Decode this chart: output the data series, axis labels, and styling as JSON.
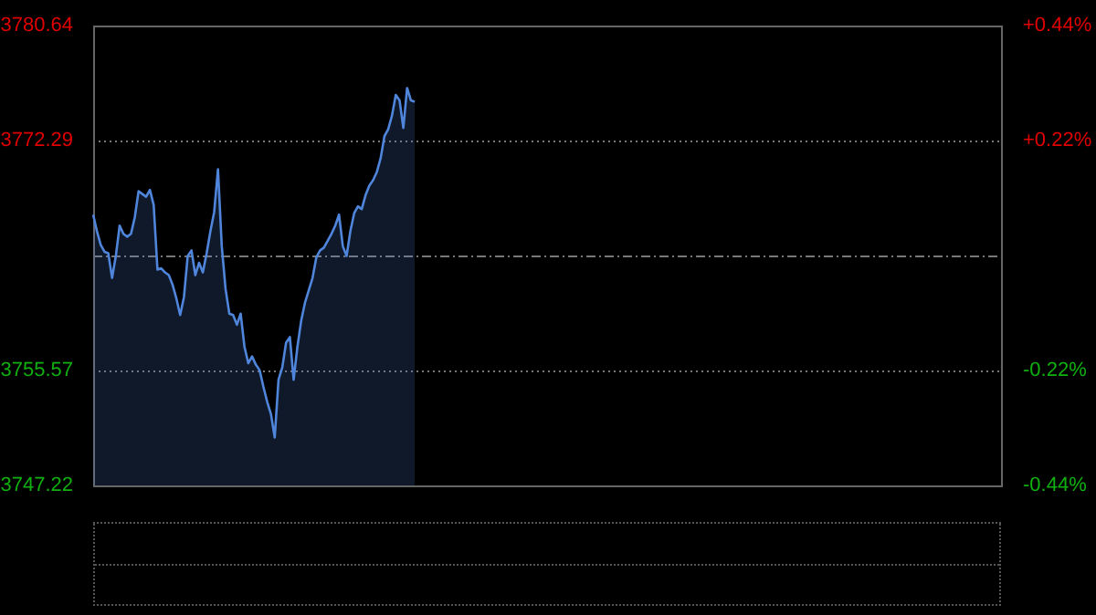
{
  "chart_data": {
    "type": "area",
    "color": "#4f86dc",
    "categories": [
      null,
      null,
      null,
      null,
      null,
      null,
      null,
      null,
      null,
      null,
      null,
      null,
      null,
      null,
      null,
      null,
      null,
      null,
      null,
      null,
      null,
      null,
      null,
      null,
      null,
      null,
      null,
      null,
      null,
      null,
      null,
      null,
      null,
      null,
      null,
      null,
      null,
      null,
      null,
      null,
      null,
      null,
      null,
      null,
      null,
      null,
      null,
      null,
      null,
      null,
      null,
      null,
      null,
      null,
      null,
      null,
      null,
      null,
      null,
      null,
      null,
      null,
      null,
      null,
      null,
      null,
      null,
      null,
      null,
      null,
      null,
      null,
      null,
      null,
      null,
      null,
      null,
      null,
      null,
      null,
      null,
      null,
      null,
      null,
      null,
      null,
      null,
      null,
      null,
      null,
      null,
      null,
      null,
      null,
      null,
      null,
      null,
      null,
      null,
      null,
      null,
      null,
      null,
      null,
      null,
      null,
      null,
      null,
      null,
      null,
      null,
      null,
      null,
      null,
      null,
      null,
      null,
      null,
      null,
      null,
      null,
      null,
      null,
      null,
      null,
      null,
      null,
      null,
      null,
      null,
      null,
      null,
      null,
      null,
      null,
      null,
      null,
      null,
      null,
      null,
      null,
      null,
      null,
      null,
      null,
      null,
      null,
      null,
      null,
      null,
      null,
      null,
      null,
      null,
      null,
      null,
      null,
      null,
      null,
      null,
      null,
      null,
      null,
      null,
      null,
      null,
      null,
      null,
      null,
      null,
      null,
      null,
      null,
      null,
      null,
      null,
      null,
      null,
      null,
      null,
      null,
      null,
      null,
      null,
      null,
      null,
      null,
      null,
      null,
      null,
      null,
      null,
      null,
      null,
      null,
      null,
      null,
      null,
      null,
      null,
      null,
      null,
      null,
      null,
      null,
      null,
      null,
      null,
      null,
      null,
      null,
      null,
      null,
      null,
      null,
      null,
      null,
      null,
      null,
      null,
      null,
      null,
      null,
      null,
      null,
      null,
      null,
      null,
      null,
      null,
      null,
      null,
      null,
      null,
      null,
      null,
      null,
      null,
      null,
      null,
      null
    ],
    "values": [
      3766.9,
      3765.7,
      3764.7,
      3764.2,
      3764.1,
      3762.3,
      3763.9,
      3766.1,
      3765.5,
      3765.3,
      3765.5,
      3766.7,
      3768.6,
      3768.4,
      3768.2,
      3768.7,
      3767.6,
      3762.9,
      3763.0,
      3762.7,
      3762.5,
      3761.8,
      3760.8,
      3759.6,
      3760.9,
      3763.9,
      3764.3,
      3762.5,
      3763.4,
      3762.7,
      3764.1,
      3765.7,
      3767.1,
      3770.2,
      3764.6,
      3761.5,
      3759.7,
      3759.6,
      3758.9,
      3759.7,
      3757.3,
      3756.1,
      3756.6,
      3756.0,
      3755.6,
      3754.4,
      3753.3,
      3752.4,
      3750.7,
      3754.9,
      3755.8,
      3757.6,
      3758.0,
      3754.9,
      3757.3,
      3759.2,
      3760.5,
      3761.4,
      3762.3,
      3763.8,
      3764.3,
      3764.5,
      3765.0,
      3765.5,
      3766.1,
      3766.9,
      3764.6,
      3763.9,
      3765.7,
      3767.0,
      3767.5,
      3767.3,
      3768.3,
      3769.0,
      3769.4,
      3770.0,
      3771.0,
      3772.6,
      3773.1,
      3774.1,
      3775.6,
      3775.2,
      3773.2,
      3776.1,
      3775.2,
      3775.1,
      null,
      null,
      null,
      null,
      null,
      null,
      null,
      null,
      null,
      null,
      null,
      null,
      null,
      null,
      null,
      null,
      null,
      null,
      null,
      null,
      null,
      null,
      null,
      null,
      null,
      null,
      null,
      null,
      null,
      null,
      null,
      null,
      null,
      null,
      null,
      null,
      null,
      null,
      null,
      null,
      null,
      null,
      null,
      null,
      null,
      null,
      null,
      null,
      null,
      null,
      null,
      null,
      null,
      null,
      null,
      null,
      null,
      null,
      null,
      null,
      null,
      null,
      null,
      null,
      null,
      null,
      null,
      null,
      null,
      null,
      null,
      null,
      null,
      null,
      null,
      null,
      null,
      null,
      null,
      null,
      null,
      null,
      null,
      null,
      null,
      null,
      null,
      null,
      null,
      null,
      null,
      null,
      null,
      null,
      null,
      null,
      null,
      null,
      null,
      null,
      null,
      null,
      null,
      null,
      null,
      null,
      null,
      null,
      null,
      null,
      null,
      null,
      null,
      null,
      null,
      null,
      null,
      null,
      null,
      null,
      null,
      null,
      null,
      null,
      null,
      null,
      null,
      null,
      null,
      null,
      null,
      null,
      null,
      null,
      null,
      null,
      null,
      null,
      null,
      null,
      null,
      null,
      null,
      null,
      null,
      null,
      null,
      null,
      null,
      null,
      null,
      null,
      null,
      null,
      null
    ],
    "ylim": [
      3747.22,
      3780.64
    ],
    "yticks": [
      3747.22,
      3755.57,
      {
        "value": 3763.93,
        "label": null
      },
      3772.29,
      3780.64
    ],
    "y2lim": [
      -0.44,
      0.44
    ],
    "y2ticks": [
      {
        "value": -0.44,
        "label": "-0.44%"
      },
      {
        "value": -0.22,
        "label": "-0.22%"
      },
      {
        "value": 0,
        "label": null
      },
      {
        "value": 0.22,
        "label": "+0.22%"
      },
      {
        "value": 0.44,
        "label": "+0.44%"
      }
    ],
    "grid": "y",
    "legend": false,
    "tick_labels": "y",
    "marker": "none"
  }
}
